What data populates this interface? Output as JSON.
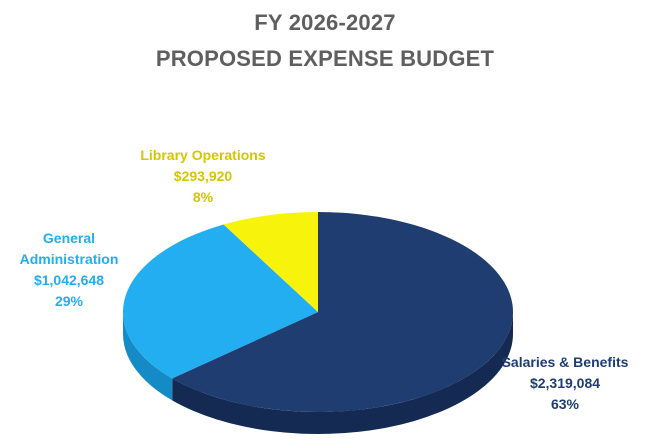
{
  "chart_data": {
    "type": "pie",
    "title": "FY 2026-2027",
    "subtitle": "PROPOSED EXPENSE BUDGET",
    "slices": [
      {
        "name": "Salaries & Benefits",
        "value": 2319084,
        "value_label": "$2,319,084",
        "percent_label": "63%",
        "color": "#1f3d70",
        "side_color": "#142a52",
        "label_color": "#1f3d70"
      },
      {
        "name": "General Administration",
        "name_lines": [
          "General",
          "Administration"
        ],
        "value": 1042648,
        "value_label": "$1,042,648",
        "percent_label": "29%",
        "color": "#22aef0",
        "side_color": "#158bc6",
        "label_color": "#22aef0"
      },
      {
        "name": "Library Operations",
        "value": 293920,
        "value_label": "$293,920",
        "percent_label": "8%",
        "color": "#f7f30a",
        "side_color": "#c9c400",
        "label_color": "#d4c600"
      }
    ],
    "legend": "none"
  }
}
